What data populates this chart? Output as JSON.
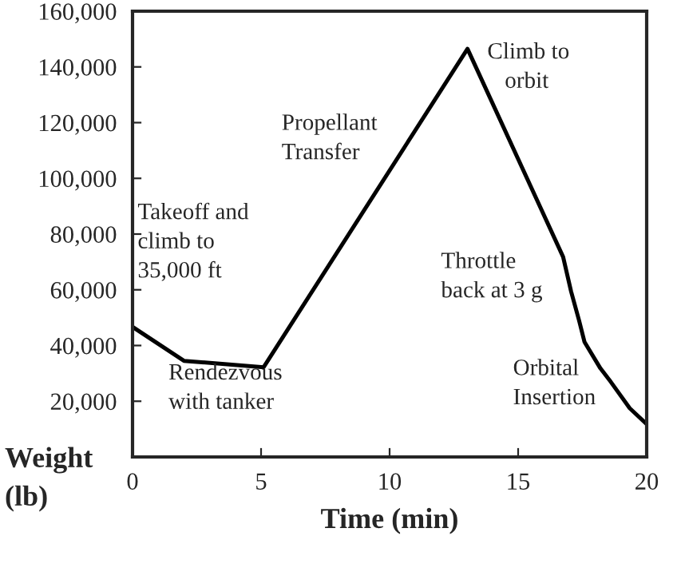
{
  "chart_data": {
    "type": "line",
    "xlabel": "Time (min)",
    "ylabel": "Weight\n(lb)",
    "x": [
      0,
      2,
      5.1,
      13.03,
      16.75,
      17.06,
      17.37,
      17.58,
      18.2,
      18.6,
      19.34,
      20
    ],
    "series": [
      {
        "color": "#000000",
        "values": [
          46700,
          34500,
          32200,
          146500,
          71800,
          59400,
          49000,
          41300,
          31800,
          27000,
          17500,
          11800
        ]
      }
    ],
    "xlim": [
      0,
      20
    ],
    "xticks": [
      0,
      5,
      10,
      15,
      20
    ],
    "ylim": [
      0,
      160000
    ],
    "yticks": [
      {
        "value": 20000,
        "label": "20,000"
      },
      {
        "value": 40000,
        "label": "40,000"
      },
      {
        "value": 60000,
        "label": "60,000"
      },
      {
        "value": 80000,
        "label": "80,000"
      },
      {
        "value": 100000,
        "label": "100,000"
      },
      {
        "value": 120000,
        "label": "120,000"
      },
      {
        "value": 140000,
        "label": "140,000"
      },
      {
        "value": 160000,
        "label": "160,000"
      }
    ],
    "annotations": [
      "Takeoff and\nclimb to\n35,000 ft",
      "Rendezvous\nwith tanker",
      "Propellant\nTransfer",
      "Climb to\n   orbit",
      "Throttle\nback at 3 g",
      "Orbital\nInsertion"
    ],
    "grid": false,
    "legend": false,
    "marker": "none",
    "line_style": "solid"
  }
}
